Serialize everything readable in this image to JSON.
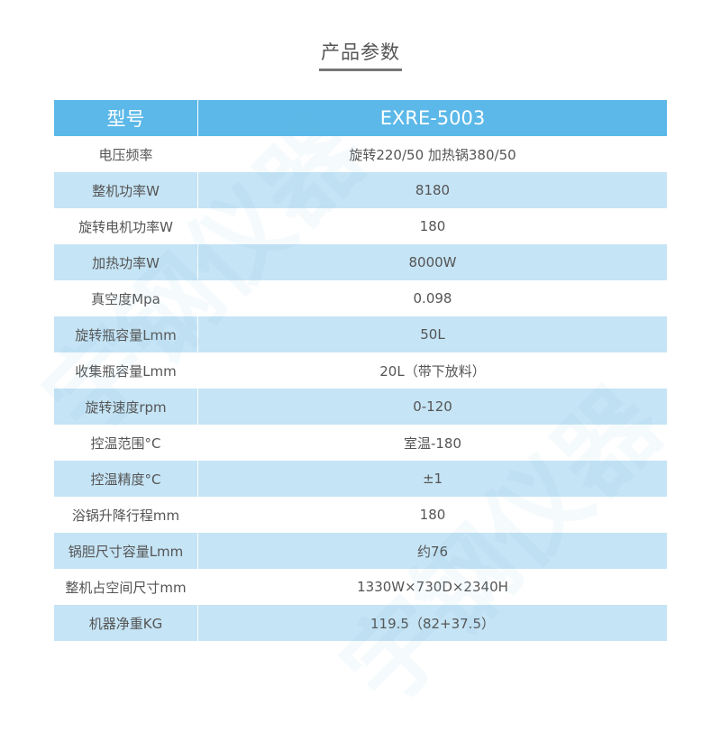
{
  "title": "产品参数",
  "watermark": "宇钢仪器",
  "colors": {
    "header": "#5bb8e8",
    "alt_row": "#c5e4f5"
  },
  "header": {
    "label": "型号",
    "value": "EXRE-5003"
  },
  "rows": [
    {
      "label": "电压频率",
      "value": "旋转220/50  加热锅380/50"
    },
    {
      "label": "整机功率W",
      "value": "8180"
    },
    {
      "label": "旋转电机功率W",
      "value": "180"
    },
    {
      "label": "加热功率W",
      "value": "8000W"
    },
    {
      "label": "真空度Mpa",
      "value": "0.098"
    },
    {
      "label": "旋转瓶容量Lmm",
      "value": "50L"
    },
    {
      "label": "收集瓶容量Lmm",
      "value": "20L（带下放料）"
    },
    {
      "label": "旋转速度rpm",
      "value": "0-120"
    },
    {
      "label": "控温范围°C",
      "value": "室温-180"
    },
    {
      "label": "控温精度°C",
      "value": "±1"
    },
    {
      "label": "浴锅升降行程mm",
      "value": "180"
    },
    {
      "label": "锅胆尺寸容量Lmm",
      "value": "约76"
    },
    {
      "label": "整机占空间尺寸mm",
      "value": "1330W×730D×2340H"
    },
    {
      "label": "机器净重KG",
      "value": "119.5（82+37.5）"
    }
  ]
}
